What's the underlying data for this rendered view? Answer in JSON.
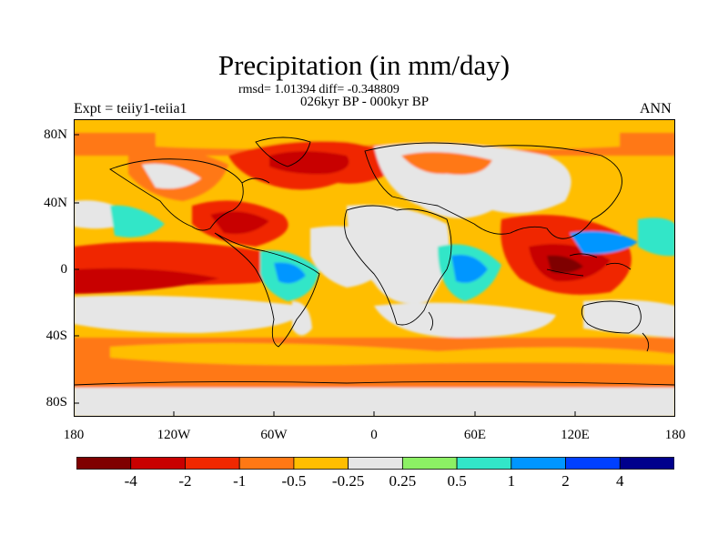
{
  "title": "Precipitation (in mm/day)",
  "stats": "rmsd= 1.01394 diff= -0.348809",
  "period": "026kyr BP - 000kyr BP",
  "experiment": "Expt = teiiy1-teiia1",
  "season": "ANN",
  "lat_labels": [
    "80N",
    "40N",
    "0",
    "40S",
    "80S"
  ],
  "lon_labels": [
    "180",
    "120W",
    "60W",
    "0",
    "60E",
    "120E",
    "180"
  ],
  "colorbar": {
    "colors": [
      "#7f0000",
      "#c80000",
      "#f02800",
      "#ff7814",
      "#ffbe00",
      "#e6e6e6",
      "#8cf064",
      "#32e6c8",
      "#0096ff",
      "#0040ff",
      "#00008c"
    ],
    "labels": [
      "-4",
      "-2",
      "-1",
      "-0.5",
      "-0.25",
      "0.25",
      "0.5",
      "1",
      "2",
      "4"
    ]
  }
}
